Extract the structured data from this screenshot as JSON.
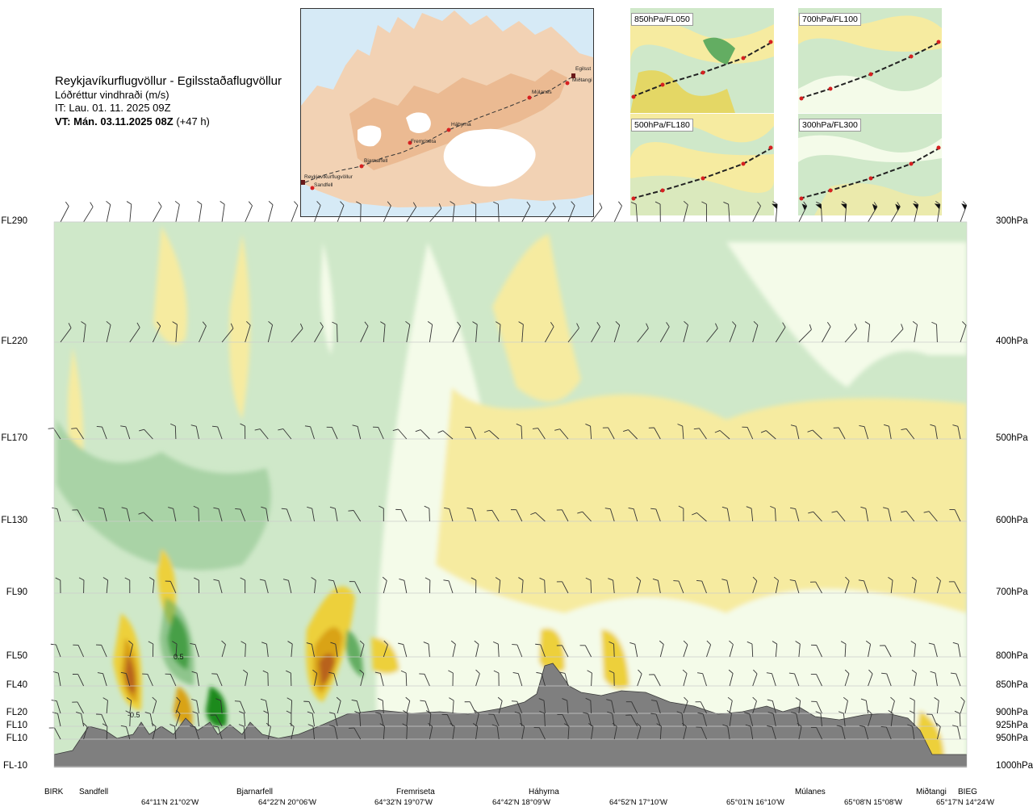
{
  "title": {
    "route": "Reykjavíkurflugvöllur - Egilsstaðaflugvöllur",
    "variable": "Lóðréttur vindhraði (m/s)",
    "init_time": "IT: Lau. 01. 11. 2025 09Z",
    "valid_label": "VT: Mán. 03.11.2025 08Z",
    "valid_offset": "(+47 h)"
  },
  "map": {
    "places": [
      "Reykjavíkurflugvöllur",
      "Sandfell",
      "Bjarnarfell",
      "Fremriseta",
      "Háhyrna",
      "Múlanes",
      "Egilsst",
      "Miðtangi"
    ]
  },
  "mini_maps": [
    {
      "label": "850hPa/FL050"
    },
    {
      "label": "700hPa/FL100"
    },
    {
      "label": "500hPa/FL180"
    },
    {
      "label": "300hPa/FL300"
    }
  ],
  "chart_data": {
    "type": "heatmap",
    "title": "Lóðréttur vindhraði (m/s)",
    "levels": [
      {
        "fl": "FL290",
        "hpa": "300hPa",
        "pressure": 300
      },
      {
        "fl": "FL220",
        "hpa": "400hPa",
        "pressure": 400
      },
      {
        "fl": "FL170",
        "hpa": "500hPa",
        "pressure": 500
      },
      {
        "fl": "FL130",
        "hpa": "600hPa",
        "pressure": 600
      },
      {
        "fl": "FL90",
        "hpa": "700hPa",
        "pressure": 700
      },
      {
        "fl": "FL50",
        "hpa": "800hPa",
        "pressure": 800
      },
      {
        "fl": "FL40",
        "hpa": "850hPa",
        "pressure": 850
      },
      {
        "fl": "FL20",
        "hpa": "900hPa",
        "pressure": 900
      },
      {
        "fl": "FL10",
        "hpa": "925hPa",
        "pressure": 925
      },
      {
        "fl": "FL10",
        "hpa": "950hPa",
        "pressure": 950
      },
      {
        "fl": "FL-10",
        "hpa": "1000hPa",
        "pressure": 1000
      }
    ],
    "x_stations": [
      "BIRK",
      "Sandfell",
      "Bjarnarfell",
      "Fremriseta",
      "Háhyrna",
      "Múlanes",
      "Miðtangi",
      "BIEG"
    ],
    "x_coords": [
      "64°11'N 21°02'W",
      "64°22'N 20°06'W",
      "64°32'N 19°07'W",
      "64°42'N 18°09'W",
      "64°52'N 17°10'W",
      "65°01'N 16°10'W",
      "65°08'N 15°08'W",
      "65°17'N 14°24'W"
    ],
    "contour_labels": [
      "0.5",
      "-0.5"
    ],
    "colors": {
      "strong_down": "#1e8a1e",
      "mod_down": "#63ad62",
      "weak_down": "#a9d3a6",
      "faint_down": "#cfe8c9",
      "neutral": "#f4fbe9",
      "faint_up": "#fff8c4",
      "weak_up": "#f6eba0",
      "mod_up": "#edd03b",
      "strong_up": "#d9a316",
      "vstrong_up": "#b8621c",
      "extreme_up": "#7a3410",
      "terrain": "#7f7f7f"
    }
  }
}
